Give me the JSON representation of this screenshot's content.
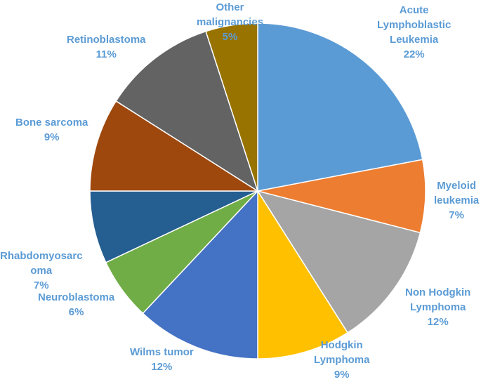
{
  "chart_data": {
    "type": "pie",
    "title": "",
    "label_color": "#5b9bd5",
    "slices": [
      {
        "label_lines": [
          "Acute",
          "Lymphoblastic",
          "Leukemia"
        ],
        "value": 22,
        "pct": "22%",
        "color": "#5b9bd5"
      },
      {
        "label_lines": [
          "Myeloid",
          "leukemia"
        ],
        "value": 7,
        "pct": "7%",
        "color": "#ed7d31"
      },
      {
        "label_lines": [
          "Non Hodgkin",
          "Lymphoma"
        ],
        "value": 12,
        "pct": "12%",
        "color": "#a5a5a5"
      },
      {
        "label_lines": [
          "Hodgkin",
          "Lymphoma"
        ],
        "value": 9,
        "pct": "9%",
        "color": "#ffc000"
      },
      {
        "label_lines": [
          "Wilms tumor"
        ],
        "value": 12,
        "pct": "12%",
        "color": "#4472c4"
      },
      {
        "label_lines": [
          "Neuroblastoma"
        ],
        "value": 6,
        "pct": "6%",
        "color": "#70ad47"
      },
      {
        "label_lines": [
          "Rhabdomyosarc",
          "oma"
        ],
        "value": 7,
        "pct": "7%",
        "color": "#255e91"
      },
      {
        "label_lines": [
          "Bone sarcoma"
        ],
        "value": 9,
        "pct": "9%",
        "color": "#9e480e"
      },
      {
        "label_lines": [
          "Retinoblastoma"
        ],
        "value": 11,
        "pct": "11%",
        "color": "#636363"
      },
      {
        "label_lines": [
          "Other",
          "malignancies"
        ],
        "value": 5,
        "pct": "5%",
        "color": "#997300"
      }
    ]
  }
}
